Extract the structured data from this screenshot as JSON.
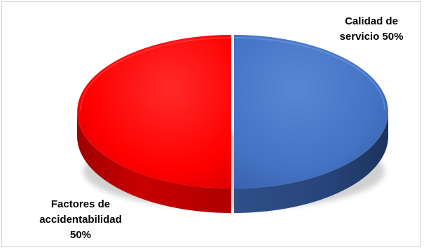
{
  "chart_data": {
    "type": "pie",
    "style": "3d",
    "title": "",
    "slices": [
      {
        "label_lines": [
          "Calidad de",
          "servicio 50%"
        ],
        "value": 50,
        "color": "#4472C4"
      },
      {
        "label_lines": [
          "Factores de",
          "accidentabilidad",
          "50%"
        ],
        "value": 50,
        "color": "#FF0000"
      }
    ],
    "legend": "none",
    "grid": false
  }
}
